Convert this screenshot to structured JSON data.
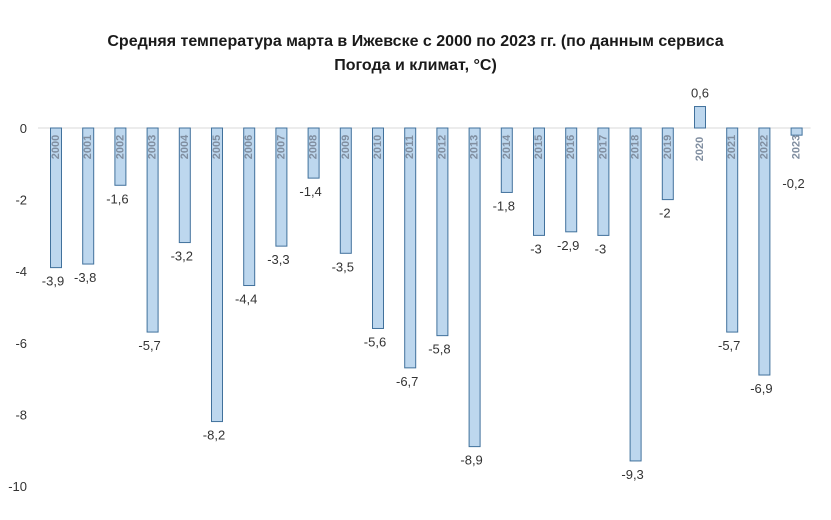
{
  "chart_data": {
    "type": "bar",
    "title_line1": "Средняя температура марта в Ижевске с 2000 по 2023 гг. (по данным сервиса",
    "title_line2": "Погода и климат, °С)",
    "categories": [
      "2000",
      "2001",
      "2002",
      "2003",
      "2004",
      "2005",
      "2006",
      "2007",
      "2008",
      "2009",
      "2010",
      "2011",
      "2012",
      "2013",
      "2014",
      "2015",
      "2016",
      "2017",
      "2018",
      "2019",
      "2020",
      "2021",
      "2022",
      "2023"
    ],
    "values": [
      -3.9,
      -3.8,
      -1.6,
      -5.7,
      -3.2,
      -8.2,
      -4.4,
      -3.3,
      -1.4,
      -3.5,
      -5.6,
      -6.7,
      -5.8,
      -8.9,
      -1.8,
      -3,
      -2.9,
      -3,
      -9.3,
      -2,
      0.6,
      -5.7,
      -6.9,
      -0.2
    ],
    "value_labels": [
      "-3,9",
      "-3,8",
      "-1,6",
      "-5,7",
      "-3,2",
      "-8,2",
      "-4,4",
      "-3,3",
      "-1,4",
      "-3,5",
      "-5,6",
      "-6,7",
      "-5,8",
      "-8,9",
      "-1,8",
      "-3",
      "-2,9",
      "-3",
      "-9,3",
      "-2",
      "0,6",
      "-5,7",
      "-6,9",
      "-0,2"
    ],
    "ylim": [
      -10,
      0.6
    ],
    "yticks": [
      0,
      -2,
      -4,
      -6,
      -8,
      -10
    ],
    "xlabel": "",
    "ylabel": "",
    "bar_fill": "#bdd7ee",
    "bar_stroke": "#41719c",
    "grid": false,
    "legend": "none"
  }
}
